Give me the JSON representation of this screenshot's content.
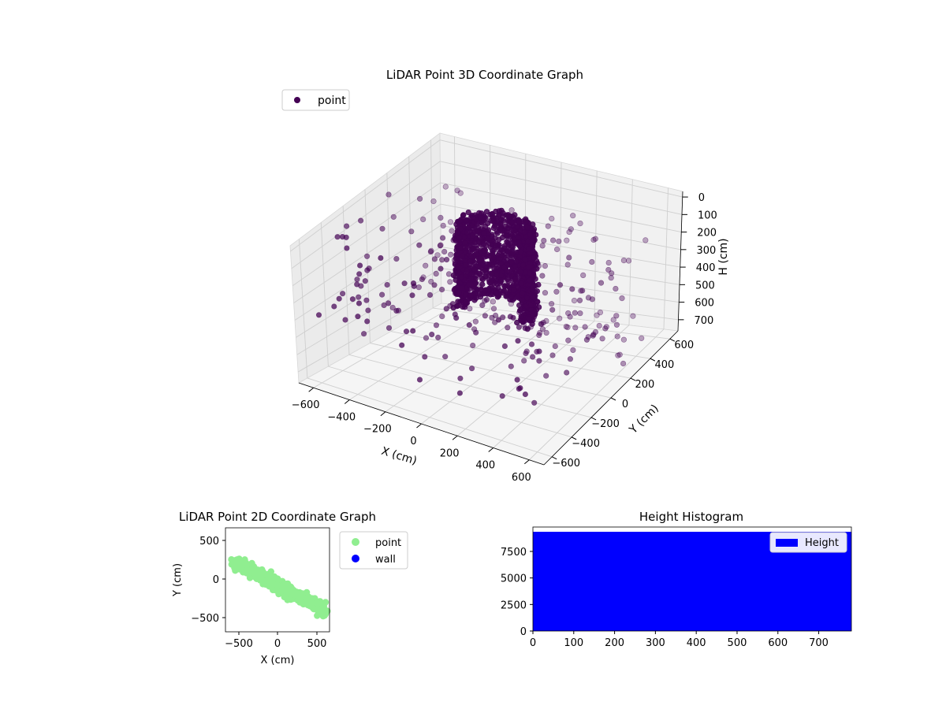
{
  "chart_data": [
    {
      "type": "scatter",
      "projection": "3d",
      "title": "LiDAR Point 3D Coordinate Graph",
      "xlabel": "X (cm)",
      "ylabel": "Y (cm)",
      "zlabel": "H (cm)",
      "xticks": [
        "−600",
        "−400",
        "−200",
        "0",
        "200",
        "400",
        "600"
      ],
      "yticks": [
        "−600",
        "−400",
        "−200",
        "0",
        "200",
        "400",
        "600"
      ],
      "zticks": [
        "0",
        "100",
        "200",
        "300",
        "400",
        "500",
        "600",
        "700"
      ],
      "xlim": [
        -700,
        700
      ],
      "ylim": [
        -700,
        700
      ],
      "zlim": [
        0,
        780
      ],
      "z_inverted": true,
      "grid": true,
      "legend": {
        "placement": "upper-left",
        "entries": [
          "point"
        ]
      },
      "series": [
        {
          "name": "point",
          "color": "#440154",
          "clusters": [
            {
              "x_center": 100,
              "y_center": 0,
              "z_center": 250,
              "spread_x": 150,
              "spread_y": 200,
              "z_range": [
                50,
                450
              ],
              "count": "dense"
            },
            {
              "x_range": [
                -650,
                600
              ],
              "y_range": [
                -650,
                650
              ],
              "z_range": [
                100,
                650
              ],
              "count": "sparse"
            }
          ]
        }
      ]
    },
    {
      "type": "scatter",
      "title": "LiDAR Point 2D Coordinate Graph",
      "xlabel": "X (cm)",
      "ylabel": "Y (cm)",
      "xticks": [
        "−500",
        "0",
        "500"
      ],
      "yticks": [
        "−500",
        "0",
        "500"
      ],
      "xlim": [
        -660,
        660
      ],
      "ylim": [
        -650,
        680
      ],
      "legend": {
        "placement": "outside-right",
        "entries": [
          "point",
          "wall"
        ]
      },
      "series": [
        {
          "name": "point",
          "color": "#90ee90",
          "band": {
            "from": [
              -550,
              250
            ],
            "to": [
              600,
              -380
            ],
            "width": 250
          }
        },
        {
          "name": "wall",
          "color": "#0000ff",
          "points": []
        }
      ]
    },
    {
      "type": "bar",
      "title": "Height Histogram",
      "xticks": [
        "0",
        "100",
        "200",
        "300",
        "400",
        "500",
        "600",
        "700"
      ],
      "yticks": [
        "0",
        "2500",
        "5000",
        "7500"
      ],
      "xlim": [
        0,
        780
      ],
      "ylim": [
        0,
        9800
      ],
      "legend": {
        "placement": "upper-right",
        "entries": [
          "Height"
        ]
      },
      "series": [
        {
          "name": "Height",
          "color": "#0000ff",
          "bin_range": [
            0,
            780
          ],
          "value": 9350
        }
      ]
    }
  ]
}
